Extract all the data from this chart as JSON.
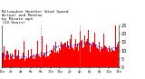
{
  "title_line1": "Milwaukee Weather Wind Speed",
  "title_line2": "Actual and Median",
  "title_line3": "by Minute mph",
  "title_line4": "(24 Hours)",
  "background_color": "#ffffff",
  "bar_color": "#ff0000",
  "median_color": "#0000ff",
  "vline_color": "#888888",
  "ylim": [
    0,
    25
  ],
  "n_points": 1440,
  "ylabel_fontsize": 3.5,
  "xlabel_fontsize": 2.5,
  "title_fontsize": 3.2,
  "yticks": [
    0,
    5,
    10,
    15,
    20,
    25
  ],
  "vline1": 480,
  "vline2": 960
}
